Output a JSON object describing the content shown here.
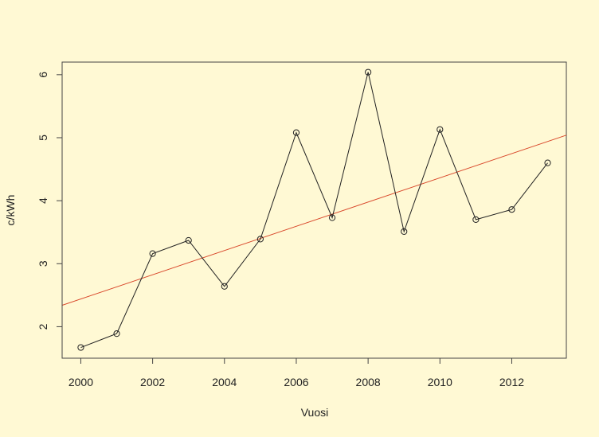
{
  "chart_data": {
    "type": "line",
    "title": "",
    "xlabel": "Vuosi",
    "ylabel": "c/kWh",
    "xlim": [
      1999.48,
      2013.52
    ],
    "ylim": [
      1.5,
      6.2
    ],
    "x_ticks": [
      2000,
      2002,
      2004,
      2006,
      2008,
      2010,
      2012
    ],
    "y_ticks": [
      2,
      3,
      4,
      5,
      6
    ],
    "grid": false,
    "background": "#fff9d4",
    "series": [
      {
        "marker": "open-circle",
        "color": "#222222",
        "x": [
          2000,
          2001,
          2002,
          2003,
          2004,
          2005,
          2006,
          2007,
          2008,
          2009,
          2010,
          2011,
          2012,
          2013
        ],
        "y": [
          1.67,
          1.89,
          3.16,
          3.37,
          2.64,
          3.39,
          5.08,
          3.73,
          6.04,
          3.51,
          5.13,
          3.7,
          3.86,
          4.6
        ]
      }
    ],
    "trend_line": {
      "color": "#d9482b",
      "x": [
        1999.48,
        2013.52
      ],
      "y": [
        2.34,
        5.04
      ]
    }
  }
}
